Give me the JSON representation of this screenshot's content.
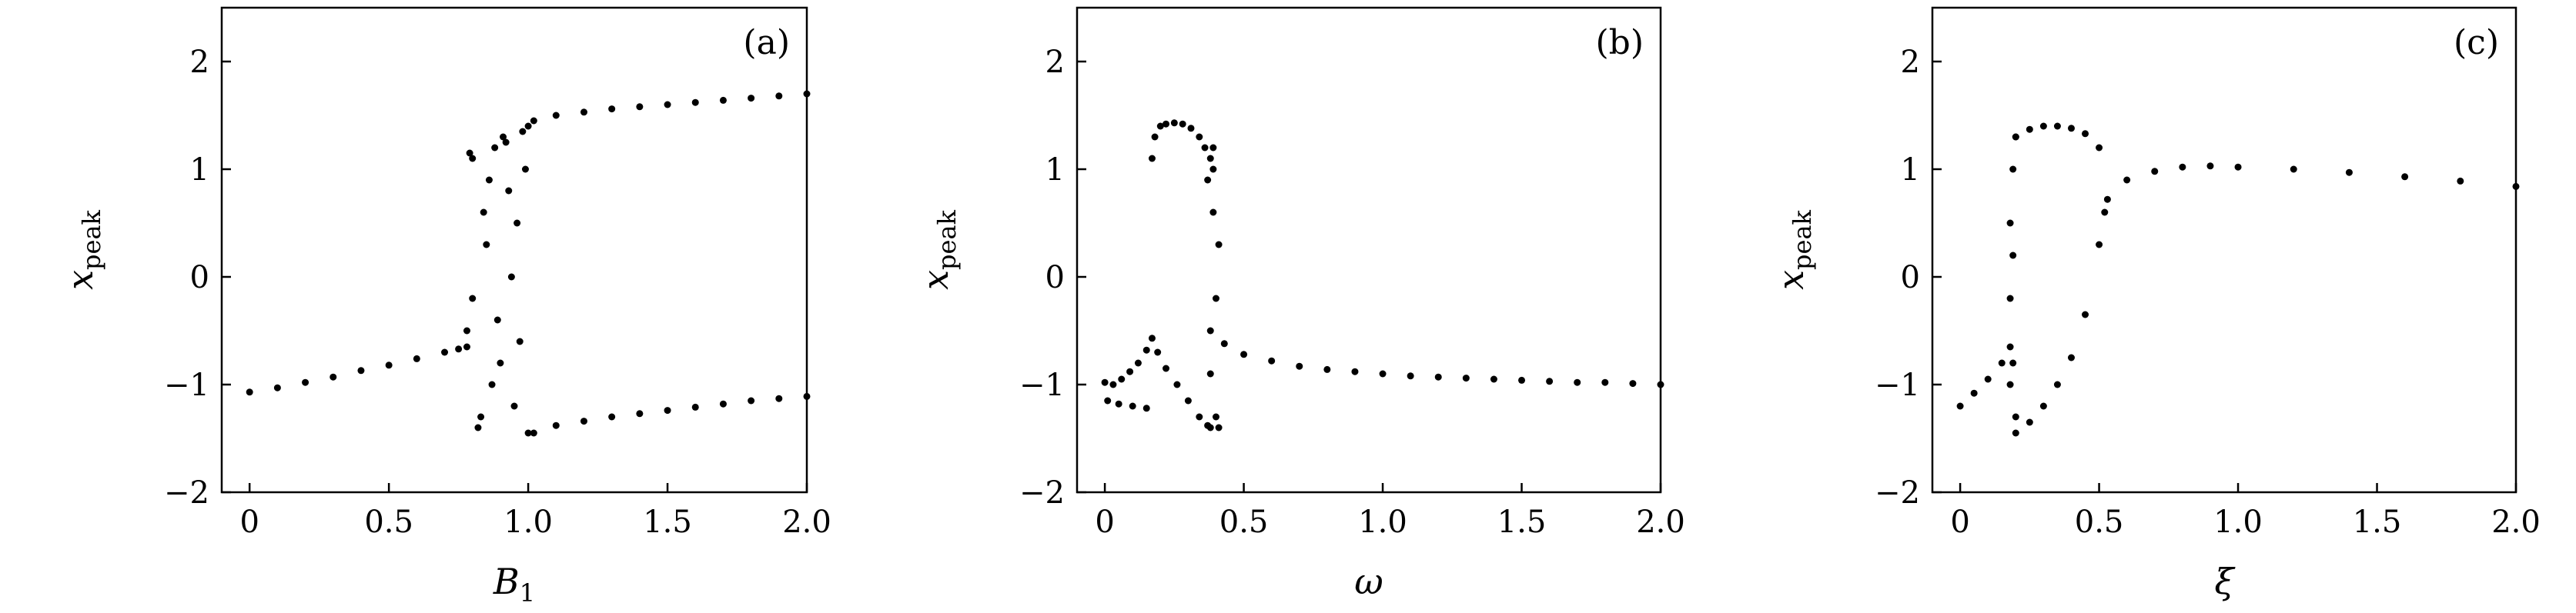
{
  "figure": {
    "background": "#ffffff",
    "point_color": "#000000"
  },
  "chart_data": [
    {
      "type": "scatter",
      "panel_label": "(a)",
      "xlabel": "B",
      "xlabel_sub": "1",
      "ylabel": "x",
      "ylabel_sub": "peak",
      "xlim": [
        -0.1,
        2.0
      ],
      "ylim": [
        -2,
        2.5
      ],
      "xticks": [
        0,
        0.5,
        1.0,
        1.5,
        2.0
      ],
      "xtick_labels": [
        "0",
        "0.5",
        "1.0",
        "1.5",
        "2.0"
      ],
      "yticks": [
        -2,
        -1,
        0,
        1,
        2
      ],
      "ytick_labels": [
        "−2",
        "−1",
        "0",
        "1",
        "2"
      ],
      "series": [
        {
          "x": [
            0,
            0.1,
            0.2,
            0.3,
            0.4,
            0.5,
            0.6,
            0.7,
            0.75,
            0.78
          ],
          "y": [
            -1.07,
            -1.03,
            -0.98,
            -0.93,
            -0.87,
            -0.82,
            -0.76,
            -0.7,
            -0.67,
            -0.65
          ]
        },
        {
          "x": [
            0.78,
            0.8,
            0.82,
            0.85,
            0.88,
            0.9,
            0.93,
            0.95,
            0.98,
            1.0,
            0.8,
            0.84,
            0.87,
            0.91,
            0.94,
            0.97,
            0.99,
            0.79,
            0.83,
            0.86,
            0.89,
            0.92,
            0.96,
            1.0
          ],
          "y": [
            -0.5,
            1.1,
            -1.4,
            0.3,
            1.2,
            -0.8,
            0.8,
            -1.2,
            1.35,
            -1.45,
            -0.2,
            0.6,
            -1.0,
            1.3,
            0.0,
            -0.6,
            1.0,
            1.15,
            -1.3,
            0.9,
            -0.4,
            1.25,
            0.5,
            1.4
          ]
        },
        {
          "x": [
            1.02,
            1.1,
            1.2,
            1.3,
            1.4,
            1.5,
            1.6,
            1.7,
            1.8,
            1.9,
            2.0
          ],
          "y": [
            1.45,
            1.5,
            1.53,
            1.56,
            1.58,
            1.6,
            1.62,
            1.64,
            1.66,
            1.68,
            1.7
          ]
        },
        {
          "x": [
            1.02,
            1.1,
            1.2,
            1.3,
            1.4,
            1.5,
            1.6,
            1.7,
            1.8,
            1.9,
            2.0
          ],
          "y": [
            -1.45,
            -1.38,
            -1.34,
            -1.3,
            -1.27,
            -1.24,
            -1.21,
            -1.18,
            -1.15,
            -1.13,
            -1.11
          ]
        }
      ]
    },
    {
      "type": "scatter",
      "panel_label": "(b)",
      "xlabel": "ω",
      "xlabel_sub": "",
      "ylabel": "x",
      "ylabel_sub": "peak",
      "xlim": [
        -0.1,
        2.0
      ],
      "ylim": [
        -2,
        2.5
      ],
      "xticks": [
        0,
        0.5,
        1.0,
        1.5,
        2.0
      ],
      "xtick_labels": [
        "0",
        "0.5",
        "1.0",
        "1.5",
        "2.0"
      ],
      "yticks": [
        -2,
        -1,
        0,
        1,
        2
      ],
      "ytick_labels": [
        "−2",
        "−1",
        "0",
        "1",
        "2"
      ],
      "series": [
        {
          "x": [
            0,
            0.03,
            0.06,
            0.09,
            0.12,
            0.15,
            0.17
          ],
          "y": [
            -0.98,
            -1.0,
            -0.95,
            -0.88,
            -0.8,
            -0.68,
            -0.57
          ]
        },
        {
          "x": [
            0.01,
            0.05,
            0.1,
            0.15
          ],
          "y": [
            -1.15,
            -1.18,
            -1.2,
            -1.22
          ]
        },
        {
          "x": [
            0.17,
            0.18,
            0.2,
            0.22,
            0.25,
            0.28,
            0.31,
            0.34,
            0.36,
            0.38
          ],
          "y": [
            1.1,
            1.3,
            1.4,
            1.42,
            1.43,
            1.42,
            1.38,
            1.3,
            1.2,
            1.1
          ]
        },
        {
          "x": [
            0.19,
            0.22,
            0.26,
            0.3,
            0.34,
            0.37,
            0.38
          ],
          "y": [
            -0.7,
            -0.85,
            -1.0,
            -1.15,
            -1.3,
            -1.38,
            -1.4
          ]
        },
        {
          "x": [
            0.37,
            0.38,
            0.39,
            0.4,
            0.41,
            0.38,
            0.39,
            0.4,
            0.41,
            0.39
          ],
          "y": [
            0.9,
            -0.5,
            1.2,
            -1.3,
            0.3,
            -0.9,
            0.6,
            -0.2,
            -1.4,
            1.0
          ]
        },
        {
          "x": [
            0.43,
            0.5,
            0.6,
            0.7,
            0.8,
            0.9,
            1.0,
            1.1,
            1.2,
            1.3,
            1.4,
            1.5,
            1.6,
            1.7,
            1.8,
            1.9,
            2.0
          ],
          "y": [
            -0.62,
            -0.72,
            -0.78,
            -0.83,
            -0.86,
            -0.88,
            -0.9,
            -0.92,
            -0.93,
            -0.94,
            -0.95,
            -0.96,
            -0.97,
            -0.98,
            -0.98,
            -0.99,
            -1.0
          ]
        }
      ]
    },
    {
      "type": "scatter",
      "panel_label": "(c)",
      "xlabel": "ξ",
      "xlabel_sub": "",
      "ylabel": "x",
      "ylabel_sub": "peak",
      "xlim": [
        -0.1,
        2.0
      ],
      "ylim": [
        -2,
        2.5
      ],
      "xticks": [
        0,
        0.5,
        1.0,
        1.5,
        2.0
      ],
      "xtick_labels": [
        "0",
        "0.5",
        "1.0",
        "1.5",
        "2.0"
      ],
      "yticks": [
        -2,
        -1,
        0,
        1,
        2
      ],
      "ytick_labels": [
        "−2",
        "−1",
        "0",
        "1",
        "2"
      ],
      "series": [
        {
          "x": [
            0,
            0.05,
            0.1,
            0.15,
            0.18
          ],
          "y": [
            -1.2,
            -1.08,
            -0.95,
            -0.8,
            -0.65
          ]
        },
        {
          "x": [
            0.18,
            0.18,
            0.19,
            0.19,
            0.2,
            0.2,
            0.19,
            0.18
          ],
          "y": [
            -0.2,
            0.5,
            1.0,
            -0.8,
            1.3,
            -1.3,
            0.2,
            -1.0
          ]
        },
        {
          "x": [
            0.2,
            0.25,
            0.3,
            0.35,
            0.4,
            0.45,
            0.5
          ],
          "y": [
            1.3,
            1.37,
            1.4,
            1.4,
            1.38,
            1.33,
            1.2
          ]
        },
        {
          "x": [
            0.2,
            0.25,
            0.3,
            0.35,
            0.4,
            0.45,
            0.5,
            0.52
          ],
          "y": [
            -1.45,
            -1.35,
            -1.2,
            -1.0,
            -0.75,
            -0.35,
            0.3,
            0.6
          ]
        },
        {
          "x": [
            0.53,
            0.6,
            0.7,
            0.8,
            0.9,
            1.0,
            1.2,
            1.4,
            1.6,
            1.8,
            2.0
          ],
          "y": [
            0.72,
            0.9,
            0.98,
            1.02,
            1.03,
            1.02,
            1.0,
            0.97,
            0.93,
            0.89,
            0.84
          ]
        }
      ]
    }
  ]
}
